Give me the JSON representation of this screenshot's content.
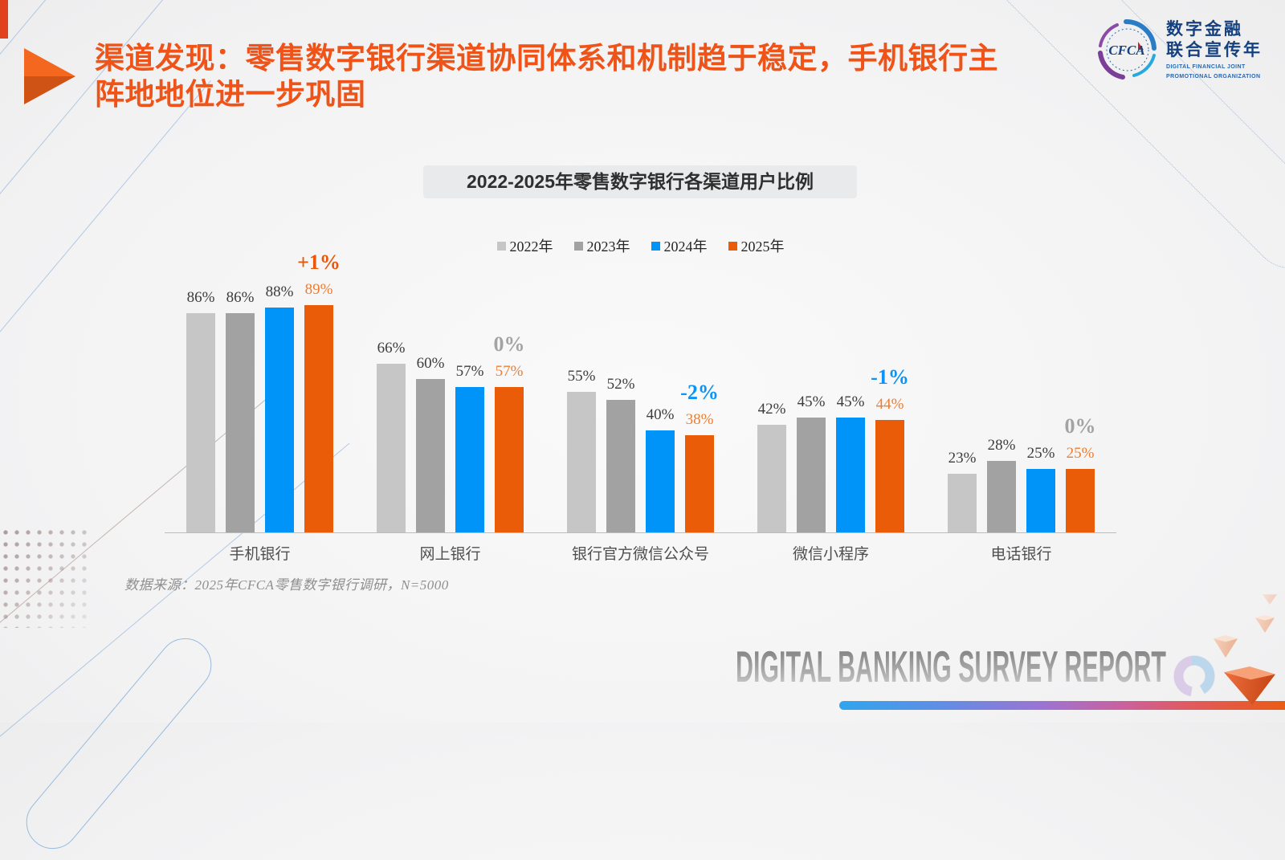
{
  "header": {
    "title_lines": [
      "渠道发现：零售数字银行渠道协同体系和机制趋于稳定，手机银行主",
      "阵地地位进一步巩固"
    ]
  },
  "logo": {
    "cfca": "CFCA",
    "cn_line1": "数字金融",
    "cn_line2": "联合宣传年",
    "en_line1": "DIGITAL FINANCIAL JOINT",
    "en_line2": "PROMOTIONAL ORGANIZATION"
  },
  "chart_data": {
    "type": "bar",
    "title": "2022-2025年零售数字银行各渠道用户比例",
    "categories": [
      "手机银行",
      "网上银行",
      "银行官方微信公众号",
      "微信小程序",
      "电话银行"
    ],
    "series": [
      {
        "name": "2022年",
        "color": "#c6c6c6",
        "values": [
          86,
          66,
          55,
          42,
          23
        ]
      },
      {
        "name": "2023年",
        "color": "#a2a2a2",
        "values": [
          86,
          60,
          52,
          45,
          28
        ]
      },
      {
        "name": "2024年",
        "color": "#0094f8",
        "values": [
          88,
          57,
          40,
          45,
          25
        ]
      },
      {
        "name": "2025年",
        "color": "#ea5c07",
        "values": [
          89,
          57,
          38,
          44,
          25
        ]
      }
    ],
    "value_label_colors": [
      "#3d3d3d",
      "#3d3d3d",
      "#3d3d3d",
      "#ed7d31"
    ],
    "annotations": [
      {
        "label": "+1%",
        "color": "#e9570a"
      },
      {
        "label": "0%",
        "color": "#a3a3a3"
      },
      {
        "label": "-2%",
        "color": "#0b93f7"
      },
      {
        "label": "-1%",
        "color": "#0b93f7"
      },
      {
        "label": "0%",
        "color": "#a3a3a3"
      }
    ],
    "ylim": [
      0,
      100
    ],
    "grid": false,
    "legend_position": "top",
    "value_suffix": "%"
  },
  "footer": {
    "source_note": "数据来源：2025年CFCA零售数字银行调研，N=5000",
    "watermark": "DIGITAL BANKING SURVEY REPORT"
  }
}
